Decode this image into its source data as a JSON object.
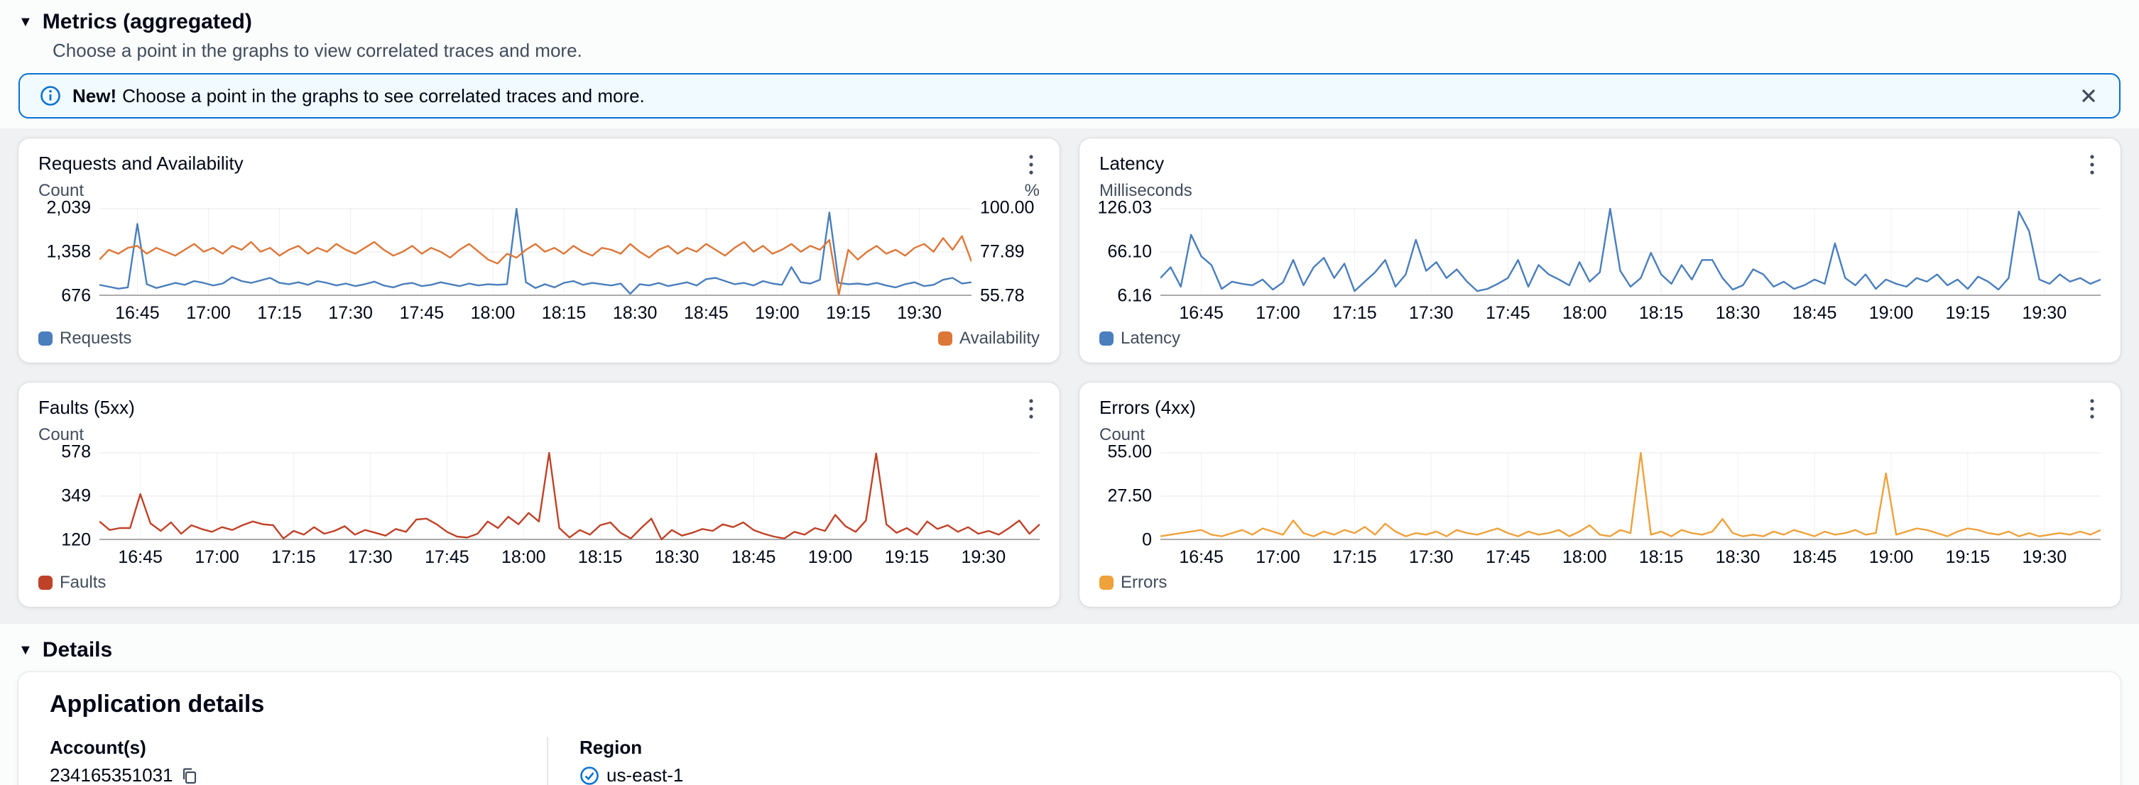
{
  "section": {
    "title": "Metrics (aggregated)",
    "subtitle": "Choose a point in the graphs to view correlated traces and more."
  },
  "banner": {
    "bold": "New!",
    "text": "Choose a point in the graphs to see correlated traces and more.",
    "border_color": "#0972d3",
    "background": "#f1faff"
  },
  "details": {
    "title": "Details",
    "card_title": "Application details",
    "fields": [
      {
        "label": "Account(s)",
        "value": "234165351031",
        "icon": "copy-icon"
      },
      {
        "label": "Region",
        "value": "us-east-1",
        "icon": "check-circle-icon"
      }
    ]
  },
  "colors": {
    "requests_blue": "#4a7ebc",
    "availability_orange": "#dd7738",
    "faults_red": "#bf4228",
    "errors_amber": "#efa13b",
    "accent_blue": "#0972d3",
    "icon_gray": "#414d5c"
  },
  "chart_data": [
    {
      "id": "requests-availability",
      "type": "line",
      "title": "Requests and Availability",
      "left_axis": {
        "label": "Count",
        "ticks": [
          "2,039",
          "1,358",
          "676"
        ],
        "min": 676,
        "max": 2039
      },
      "right_axis": {
        "label": "%",
        "ticks": [
          "100.00",
          "77.89",
          "55.78"
        ],
        "min": 55.78,
        "max": 100
      },
      "x_ticks": [
        "16:45",
        "17:00",
        "17:15",
        "17:30",
        "17:45",
        "18:00",
        "18:15",
        "18:30",
        "18:45",
        "19:00",
        "19:15",
        "19:30"
      ],
      "x_tick_minutes": [
        1005,
        1020,
        1035,
        1050,
        1065,
        1080,
        1095,
        1110,
        1125,
        1140,
        1155,
        1170
      ],
      "x_range_minutes": [
        997,
        1181
      ],
      "legend_layout": "split",
      "series": [
        {
          "name": "Requests",
          "color": "#4a7ebc",
          "axis": "left",
          "values": [
            840,
            810,
            780,
            800,
            1800,
            850,
            790,
            830,
            870,
            840,
            900,
            870,
            830,
            860,
            960,
            900,
            870,
            910,
            950,
            870,
            850,
            880,
            840,
            900,
            870,
            830,
            860,
            820,
            850,
            890,
            830,
            800,
            850,
            870,
            820,
            840,
            880,
            850,
            820,
            860,
            830,
            850,
            840,
            850,
            2039,
            880,
            790,
            850,
            800,
            870,
            900,
            840,
            870,
            850,
            830,
            860,
            700,
            850,
            830,
            870,
            820,
            850,
            880,
            830,
            930,
            950,
            900,
            850,
            870,
            830,
            900,
            860,
            840,
            1120,
            880,
            860,
            920,
            1980,
            870,
            850,
            860,
            840,
            870,
            830,
            800,
            850,
            880,
            820,
            840,
            920,
            950,
            860,
            880
          ]
        },
        {
          "name": "Availability",
          "color": "#dd7738",
          "axis": "right",
          "values": [
            74,
            79,
            77,
            80,
            81,
            77,
            80,
            78,
            76,
            79,
            82,
            78,
            80,
            77,
            81,
            79,
            83,
            78,
            80,
            76,
            79,
            81,
            77,
            80,
            78,
            82,
            79,
            77,
            80,
            83,
            79,
            76,
            78,
            81,
            77,
            80,
            78,
            75,
            79,
            82,
            78,
            74,
            72,
            77,
            75,
            79,
            82,
            78,
            80,
            77,
            81,
            78,
            76,
            80,
            79,
            77,
            82,
            78,
            75,
            79,
            81,
            77,
            80,
            78,
            82,
            79,
            76,
            80,
            83,
            78,
            81,
            77,
            79,
            82,
            78,
            81,
            79,
            84,
            56,
            79,
            74,
            78,
            81,
            77,
            79,
            76,
            80,
            82,
            78,
            85,
            79,
            86,
            73
          ]
        }
      ]
    },
    {
      "id": "latency",
      "type": "line",
      "title": "Latency",
      "left_axis": {
        "label": "Milliseconds",
        "ticks": [
          "126.03",
          "66.10",
          "6.16"
        ],
        "min": 6.16,
        "max": 126.03
      },
      "x_ticks": [
        "16:45",
        "17:00",
        "17:15",
        "17:30",
        "17:45",
        "18:00",
        "18:15",
        "18:30",
        "18:45",
        "19:00",
        "19:15",
        "19:30"
      ],
      "x_tick_minutes": [
        1005,
        1020,
        1035,
        1050,
        1065,
        1080,
        1095,
        1110,
        1125,
        1140,
        1155,
        1170
      ],
      "x_range_minutes": [
        997,
        1181
      ],
      "legend_layout": "left",
      "series": [
        {
          "name": "Latency",
          "color": "#4a7ebc",
          "axis": "left",
          "values": [
            30,
            45,
            18,
            90,
            60,
            48,
            15,
            25,
            22,
            20,
            28,
            14,
            24,
            55,
            20,
            45,
            58,
            30,
            50,
            12,
            25,
            38,
            55,
            18,
            35,
            83,
            40,
            52,
            30,
            42,
            25,
            12,
            15,
            22,
            30,
            55,
            18,
            48,
            35,
            28,
            20,
            52,
            25,
            38,
            126,
            40,
            18,
            30,
            65,
            35,
            22,
            48,
            28,
            55,
            55,
            30,
            14,
            20,
            42,
            35,
            18,
            25,
            15,
            20,
            28,
            22,
            78,
            30,
            20,
            35,
            15,
            28,
            22,
            18,
            30,
            25,
            35,
            20,
            28,
            15,
            32,
            25,
            14,
            30,
            122,
            95,
            28,
            22,
            35,
            25,
            30,
            22,
            28
          ]
        }
      ]
    },
    {
      "id": "faults-5xx",
      "type": "line",
      "title": "Faults (5xx)",
      "left_axis": {
        "label": "Count",
        "ticks": [
          "578",
          "349",
          "120"
        ],
        "min": 120,
        "max": 578
      },
      "x_ticks": [
        "16:45",
        "17:00",
        "17:15",
        "17:30",
        "17:45",
        "18:00",
        "18:15",
        "18:30",
        "18:45",
        "19:00",
        "19:15",
        "19:30"
      ],
      "x_tick_minutes": [
        1005,
        1020,
        1035,
        1050,
        1065,
        1080,
        1095,
        1110,
        1125,
        1140,
        1155,
        1170
      ],
      "x_range_minutes": [
        997,
        1181
      ],
      "legend_layout": "left",
      "series": [
        {
          "name": "Faults",
          "color": "#bf4228",
          "axis": "left",
          "values": [
            215,
            170,
            180,
            180,
            360,
            205,
            165,
            210,
            150,
            195,
            175,
            160,
            185,
            170,
            195,
            215,
            200,
            195,
            125,
            165,
            145,
            185,
            150,
            165,
            190,
            145,
            170,
            155,
            140,
            175,
            160,
            225,
            230,
            200,
            160,
            135,
            130,
            150,
            215,
            180,
            240,
            200,
            260,
            215,
            578,
            180,
            130,
            170,
            145,
            195,
            210,
            155,
            125,
            180,
            230,
            120,
            170,
            140,
            155,
            175,
            165,
            200,
            185,
            210,
            170,
            150,
            135,
            125,
            160,
            145,
            180,
            165,
            250,
            190,
            160,
            220,
            575,
            200,
            155,
            180,
            145,
            215,
            175,
            195,
            160,
            185,
            150,
            165,
            145,
            180,
            220,
            150,
            200
          ]
        }
      ]
    },
    {
      "id": "errors-4xx",
      "type": "line",
      "title": "Errors (4xx)",
      "left_axis": {
        "label": "Count",
        "ticks": [
          "55.00",
          "27.50",
          "0"
        ],
        "min": 0,
        "max": 55
      },
      "x_ticks": [
        "16:45",
        "17:00",
        "17:15",
        "17:30",
        "17:45",
        "18:00",
        "18:15",
        "18:30",
        "18:45",
        "19:00",
        "19:15",
        "19:30"
      ],
      "x_tick_minutes": [
        1005,
        1020,
        1035,
        1050,
        1065,
        1080,
        1095,
        1110,
        1125,
        1140,
        1155,
        1170
      ],
      "x_range_minutes": [
        997,
        1181
      ],
      "legend_layout": "left",
      "series": [
        {
          "name": "Errors",
          "color": "#efa13b",
          "axis": "left",
          "values": [
            2,
            3,
            4,
            5,
            6,
            3,
            2,
            4,
            6,
            3,
            7,
            5,
            3,
            12,
            4,
            2,
            5,
            3,
            6,
            4,
            8,
            3,
            10,
            5,
            2,
            4,
            3,
            5,
            2,
            6,
            4,
            3,
            5,
            7,
            4,
            2,
            5,
            3,
            4,
            6,
            2,
            5,
            9,
            3,
            2,
            6,
            4,
            55,
            3,
            5,
            2,
            6,
            4,
            3,
            5,
            13,
            4,
            2,
            3,
            2,
            5,
            3,
            6,
            4,
            2,
            5,
            3,
            4,
            6,
            3,
            4,
            42,
            3,
            5,
            7,
            6,
            4,
            2,
            5,
            7,
            6,
            4,
            3,
            5,
            2,
            4,
            2,
            3,
            4,
            3,
            5,
            3,
            6
          ]
        }
      ]
    }
  ]
}
